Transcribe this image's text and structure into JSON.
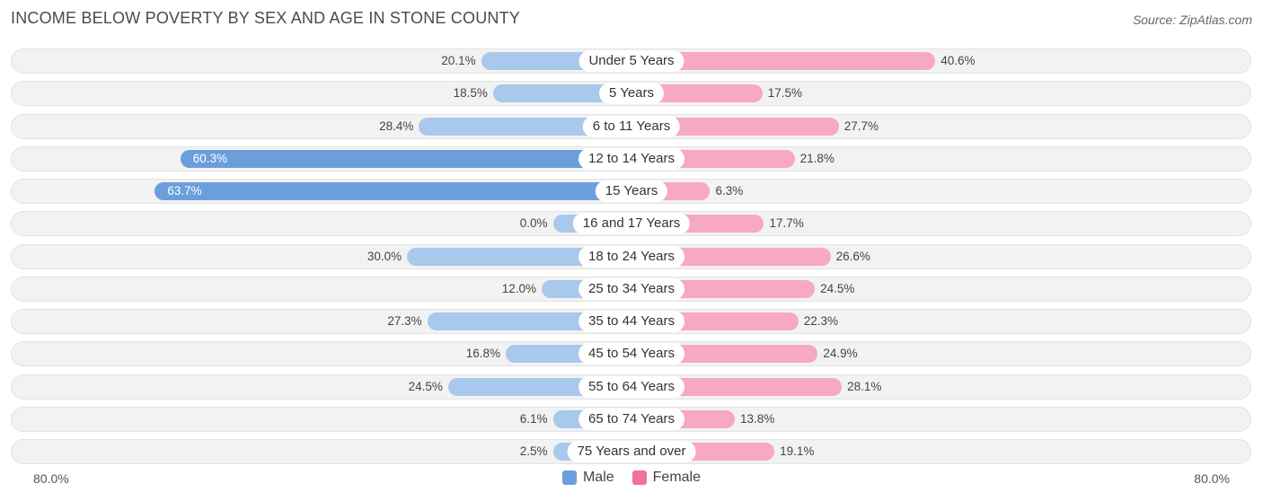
{
  "title": "INCOME BELOW POVERTY BY SEX AND AGE IN STONE COUNTY",
  "source": "Source: ZipAtlas.com",
  "colors": {
    "male_strong": "#6a9fdc",
    "male_light": "#a8c8ec",
    "female_strong": "#f07199",
    "female_light": "#f7a8c2"
  },
  "chart_data": {
    "type": "bar",
    "orientation": "horizontal-diverging",
    "title": "INCOME BELOW POVERTY BY SEX AND AGE IN STONE COUNTY",
    "categories": [
      "Under 5 Years",
      "5 Years",
      "6 to 11 Years",
      "12 to 14 Years",
      "15 Years",
      "16 and 17 Years",
      "18 to 24 Years",
      "25 to 34 Years",
      "35 to 44 Years",
      "45 to 54 Years",
      "55 to 64 Years",
      "65 to 74 Years",
      "75 Years and over"
    ],
    "series": [
      {
        "name": "Male",
        "values": [
          20.1,
          18.5,
          28.4,
          60.3,
          63.7,
          0.0,
          30.0,
          12.0,
          27.3,
          16.8,
          24.5,
          6.1,
          2.5
        ],
        "labels": [
          "20.1%",
          "18.5%",
          "28.4%",
          "60.3%",
          "63.7%",
          "0.0%",
          "30.0%",
          "12.0%",
          "27.3%",
          "16.8%",
          "24.5%",
          "6.1%",
          "2.5%"
        ]
      },
      {
        "name": "Female",
        "values": [
          40.6,
          17.5,
          27.7,
          21.8,
          6.3,
          17.7,
          26.6,
          24.5,
          22.3,
          24.9,
          28.1,
          13.8,
          19.1
        ],
        "labels": [
          "40.6%",
          "17.5%",
          "27.7%",
          "21.8%",
          "6.3%",
          "17.7%",
          "26.6%",
          "24.5%",
          "22.3%",
          "24.9%",
          "28.1%",
          "13.8%",
          "19.1%"
        ]
      }
    ],
    "xlim": [
      0,
      80
    ],
    "axis_left_label": "80.0%",
    "axis_right_label": "80.0%",
    "legend": [
      "Male",
      "Female"
    ],
    "legend_position": "bottom-center"
  }
}
